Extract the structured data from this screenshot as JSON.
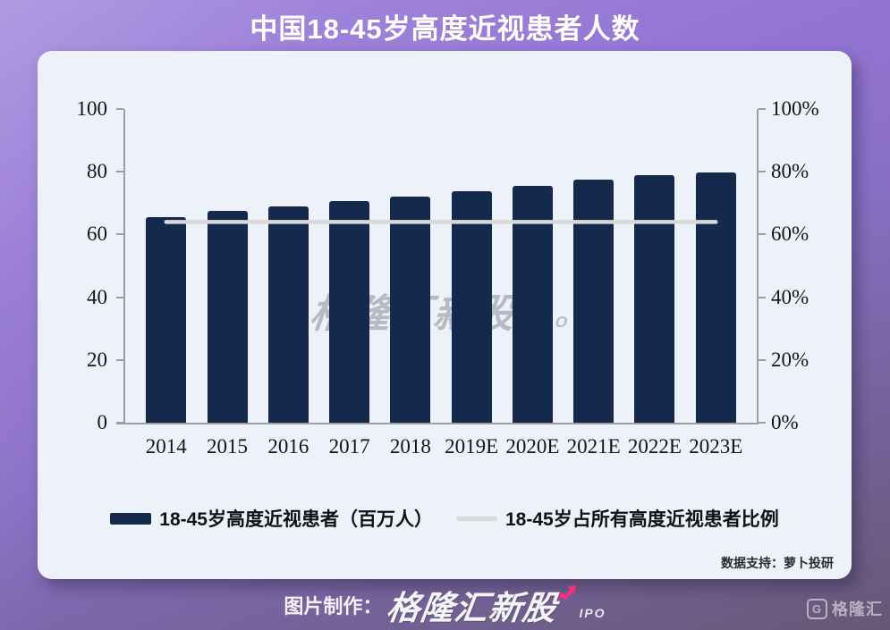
{
  "title": "中国18-45岁高度近视患者人数",
  "chart_data": {
    "type": "bar",
    "title": "中国18-45岁高度近视患者人数",
    "categories": [
      "2014",
      "2015",
      "2016",
      "2017",
      "2018",
      "2019E",
      "2020E",
      "2021E",
      "2022E",
      "2023E"
    ],
    "series": [
      {
        "name": "18-45岁高度近视患者（百万人）",
        "type": "bar",
        "axis": "left",
        "values": [
          65.5,
          67.4,
          68.9,
          70.6,
          72.2,
          73.8,
          75.6,
          77.4,
          79.0,
          79.7
        ]
      },
      {
        "name": "18-45岁占所有高度近视患者比例",
        "type": "line",
        "axis": "right",
        "values": [
          64,
          64,
          64,
          64,
          64,
          64,
          64,
          64,
          64,
          64
        ]
      }
    ],
    "left_axis": {
      "ticks": [
        "0",
        "20",
        "40",
        "60",
        "80",
        "100"
      ],
      "range": [
        0,
        100
      ]
    },
    "right_axis": {
      "ticks": [
        "0%",
        "20%",
        "40%",
        "60%",
        "80%",
        "100%"
      ],
      "range": [
        0,
        100
      ]
    },
    "grid": false,
    "legend_position": "bottom"
  },
  "watermark": {
    "brand": "格隆汇新股",
    "sub": "IPO",
    "arrow": "↗"
  },
  "data_support": "数据支持：萝卜投研",
  "footer": {
    "made_label": "图片制作：",
    "brand": "格隆汇新股",
    "brand_sub": "IPO"
  },
  "corner_logo": {
    "g": "G",
    "text": "格隆汇"
  },
  "colors": {
    "bar": "#15294d",
    "ratio_line": "#d9d9d9",
    "card_bg": "#edf2fa",
    "axis": "#9e9e9e",
    "title_text": "#ffffff",
    "accent_pink": "#f5317f",
    "background_purple_top": "#a88edf",
    "background_purple_bottom": "#665876"
  }
}
